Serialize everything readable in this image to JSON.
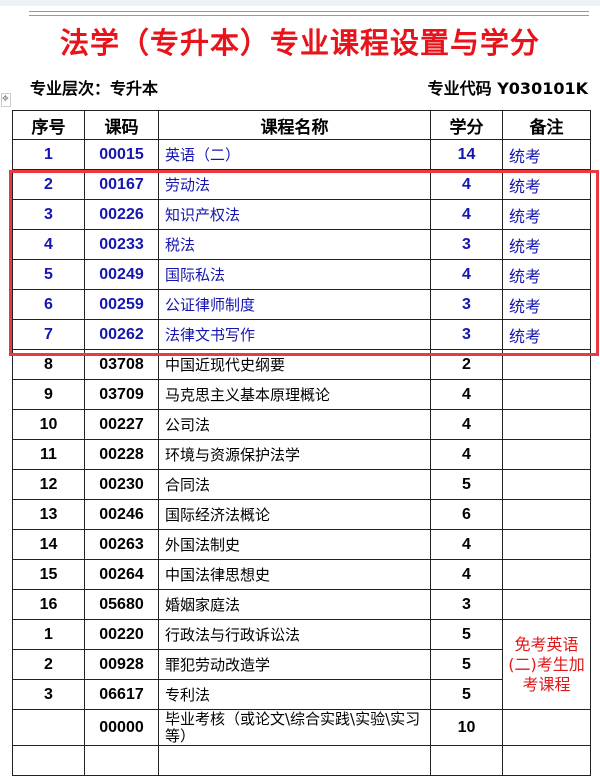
{
  "title": "法学（专升本）专业课程设置与学分",
  "level": "专业层次：专升本",
  "major_code": "专业代码 Y030101K",
  "colors": {
    "title": "#e8141b",
    "highlight_box": "#ea3a3f",
    "highlight_text": "#1515b0"
  },
  "headers": [
    "序号",
    "课码",
    "课程名称",
    "学分",
    "备注"
  ],
  "rows": [
    {
      "no": "1",
      "code": "00015",
      "name": "英语（二）",
      "credit": "14",
      "remark": "统考"
    },
    {
      "no": "2",
      "code": "00167",
      "name": "劳动法",
      "credit": "4",
      "remark": "统考"
    },
    {
      "no": "3",
      "code": "00226",
      "name": "知识产权法",
      "credit": "4",
      "remark": "统考"
    },
    {
      "no": "4",
      "code": "00233",
      "name": "税法",
      "credit": "3",
      "remark": "统考"
    },
    {
      "no": "5",
      "code": "00249",
      "name": "国际私法",
      "credit": "4",
      "remark": "统考"
    },
    {
      "no": "6",
      "code": "00259",
      "name": "公证律师制度",
      "credit": "3",
      "remark": "统考"
    },
    {
      "no": "7",
      "code": "00262",
      "name": "法律文书写作",
      "credit": "3",
      "remark": "统考"
    },
    {
      "no": "8",
      "code": "03708",
      "name": "中国近现代史纲要",
      "credit": "2",
      "remark": ""
    },
    {
      "no": "9",
      "code": "03709",
      "name": "马克思主义基本原理概论",
      "credit": "4",
      "remark": ""
    },
    {
      "no": "10",
      "code": "00227",
      "name": "公司法",
      "credit": "4",
      "remark": ""
    },
    {
      "no": "11",
      "code": "00228",
      "name": "环境与资源保护法学",
      "credit": "4",
      "remark": ""
    },
    {
      "no": "12",
      "code": "00230",
      "name": "合同法",
      "credit": "5",
      "remark": ""
    },
    {
      "no": "13",
      "code": "00246",
      "name": "国际经济法概论",
      "credit": "6",
      "remark": ""
    },
    {
      "no": "14",
      "code": "00263",
      "name": "外国法制史",
      "credit": "4",
      "remark": ""
    },
    {
      "no": "15",
      "code": "00264",
      "name": "中国法律思想史",
      "credit": "4",
      "remark": ""
    },
    {
      "no": "16",
      "code": "05680",
      "name": "婚姻家庭法",
      "credit": "3",
      "remark": ""
    }
  ],
  "extra_rows": [
    {
      "no": "1",
      "code": "00220",
      "name": "行政法与行政诉讼法",
      "credit": "5"
    },
    {
      "no": "2",
      "code": "00928",
      "name": "罪犯劳动改造学",
      "credit": "5"
    },
    {
      "no": "3",
      "code": "06617",
      "name": "专利法",
      "credit": "5"
    }
  ],
  "extra_note": "免考英语(二)考生加考课程",
  "thesis": {
    "no": "",
    "code": "00000",
    "name": "毕业考核（或论文\\综合实践\\实验\\实习等）",
    "credit": "10"
  }
}
